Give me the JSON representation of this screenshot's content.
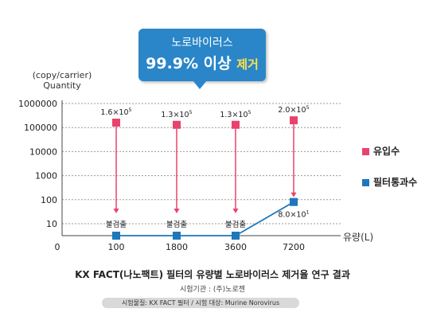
{
  "callout": {
    "line1": "노로바이러스",
    "line2_value": "99.9% 이상",
    "line2_accent": "제거"
  },
  "y_unit_line1": "(copy/carrier)",
  "y_unit_line2": "Quantity",
  "x_unit": "유량(L)",
  "legend": [
    {
      "label": "유입수",
      "color": "#e8436c"
    },
    {
      "label": "필터통과수",
      "color": "#1f77bb"
    }
  ],
  "caption": {
    "title": "KX FACT(나노팩트) 필터의 유량별 노로바이러스 제거율 연구 결과",
    "agency": "시험기관 : (주)노로젠",
    "note": "시험물질: KX FACT 필터 / 시험 대상: Murine Norovirus"
  },
  "chart_data": {
    "type": "scatter",
    "x_categories": [
      "0",
      "100",
      "1800",
      "3600",
      "7200"
    ],
    "xlabel": "유량(L)",
    "ylabel": "(copy/carrier) Quantity",
    "yscale": "log",
    "ylim": [
      10,
      1000000
    ],
    "y_ticks": [
      "1000000",
      "100000",
      "10000",
      "1000",
      "100",
      "10"
    ],
    "grid": true,
    "legend_position": "right",
    "series": [
      {
        "name": "유입수",
        "color": "#e8436c",
        "x": [
          "100",
          "1800",
          "3600",
          "7200"
        ],
        "values": [
          160000,
          130000,
          130000,
          200000
        ],
        "labels": [
          {
            "base": "1.6×10",
            "exp": "5"
          },
          {
            "base": "1.3×10",
            "exp": "5"
          },
          {
            "base": "1.3×10",
            "exp": "5"
          },
          {
            "base": "2.0×10",
            "exp": "5"
          }
        ]
      },
      {
        "name": "필터통과수",
        "color": "#1f77bb",
        "x": [
          "100",
          "1800",
          "3600",
          "7200"
        ],
        "values": [
          null,
          null,
          null,
          80
        ],
        "labels": [
          {
            "base": "불검출",
            "exp": ""
          },
          {
            "base": "불검출",
            "exp": ""
          },
          {
            "base": "불검출",
            "exp": ""
          },
          {
            "base": "8.0×10",
            "exp": "1"
          }
        ]
      }
    ]
  }
}
